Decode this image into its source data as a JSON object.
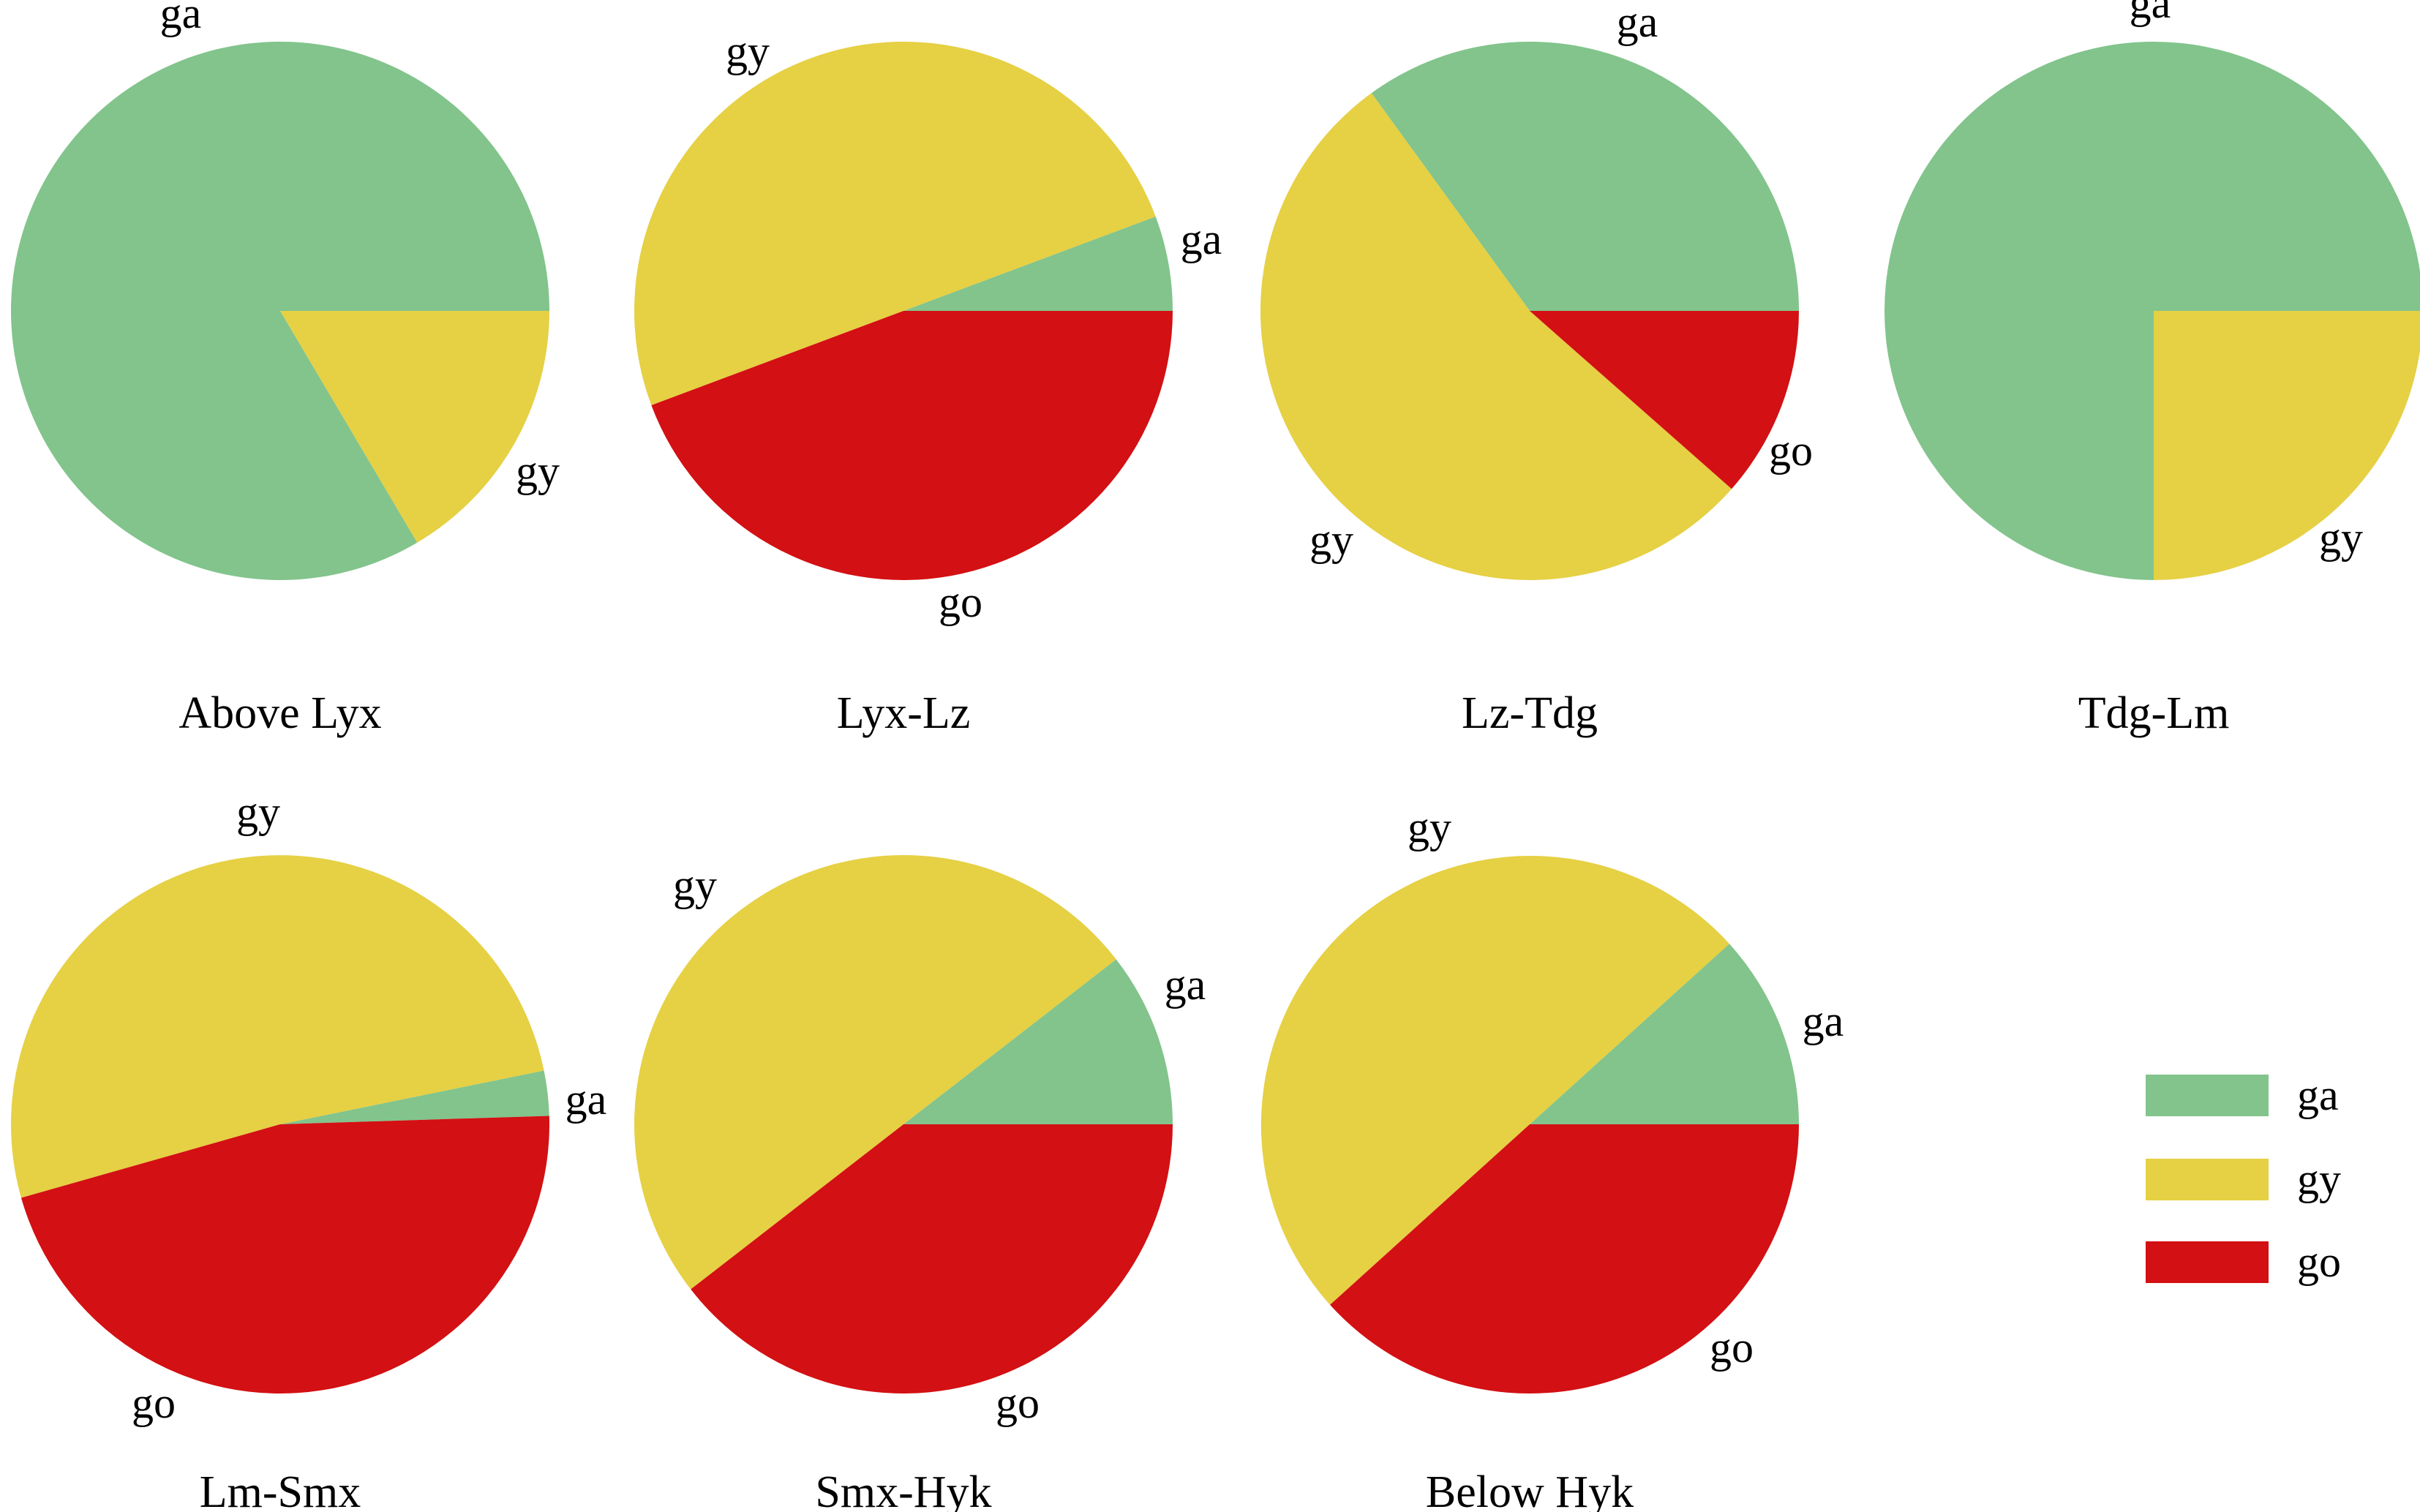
{
  "chart_data": {
    "type": "pie",
    "categories": [
      "ga",
      "gy",
      "go"
    ],
    "colors": {
      "ga": "#82c48c",
      "gy": "#e6d044",
      "go": "#d31013"
    },
    "legend": {
      "placement": "right",
      "entries": [
        {
          "key": "ga",
          "label": "ga"
        },
        {
          "key": "gy",
          "label": "gy"
        },
        {
          "key": "go",
          "label": "go"
        }
      ]
    },
    "pies": [
      {
        "title": "Above Lyx",
        "slices": [
          {
            "key": "ga",
            "label": "ga",
            "value": 83.5
          },
          {
            "key": "gy",
            "label": "gy",
            "value": 16.5
          },
          {
            "key": "go",
            "label": "",
            "value": 0
          }
        ]
      },
      {
        "title": "Lyx-Lz",
        "slices": [
          {
            "key": "ga",
            "label": "ga",
            "value": 5.7
          },
          {
            "key": "gy",
            "label": "gy",
            "value": 50
          },
          {
            "key": "go",
            "label": "go",
            "value": 44.3
          }
        ]
      },
      {
        "title": "Lz-Tdg",
        "slices": [
          {
            "key": "ga",
            "label": "ga",
            "value": 35
          },
          {
            "key": "gy",
            "label": "gy",
            "value": 53.5
          },
          {
            "key": "go",
            "label": "go",
            "value": 11.5
          }
        ]
      },
      {
        "title": "Tdg-Lm",
        "slices": [
          {
            "key": "ga",
            "label": "ga",
            "value": 75
          },
          {
            "key": "gy",
            "label": "gy",
            "value": 25
          },
          {
            "key": "go",
            "label": "",
            "value": 0
          }
        ]
      },
      {
        "title": "Lm-Smx",
        "slices": [
          {
            "key": "ga",
            "label": "ga",
            "value": 2.7
          },
          {
            "key": "gy",
            "label": "gy",
            "value": 51.2
          },
          {
            "key": "go",
            "label": "go",
            "value": 46.1
          }
        ]
      },
      {
        "title": "Smx-Hyk",
        "slices": [
          {
            "key": "ga",
            "label": "ga",
            "value": 10.5
          },
          {
            "key": "gy",
            "label": "gy",
            "value": 50
          },
          {
            "key": "go",
            "label": "go",
            "value": 39.5
          }
        ]
      },
      {
        "title": "Below Hyk",
        "slices": [
          {
            "key": "ga",
            "label": "ga",
            "value": 11.7
          },
          {
            "key": "gy",
            "label": "gy",
            "value": 50
          },
          {
            "key": "go",
            "label": "go",
            "value": 38.3
          }
        ]
      }
    ]
  }
}
